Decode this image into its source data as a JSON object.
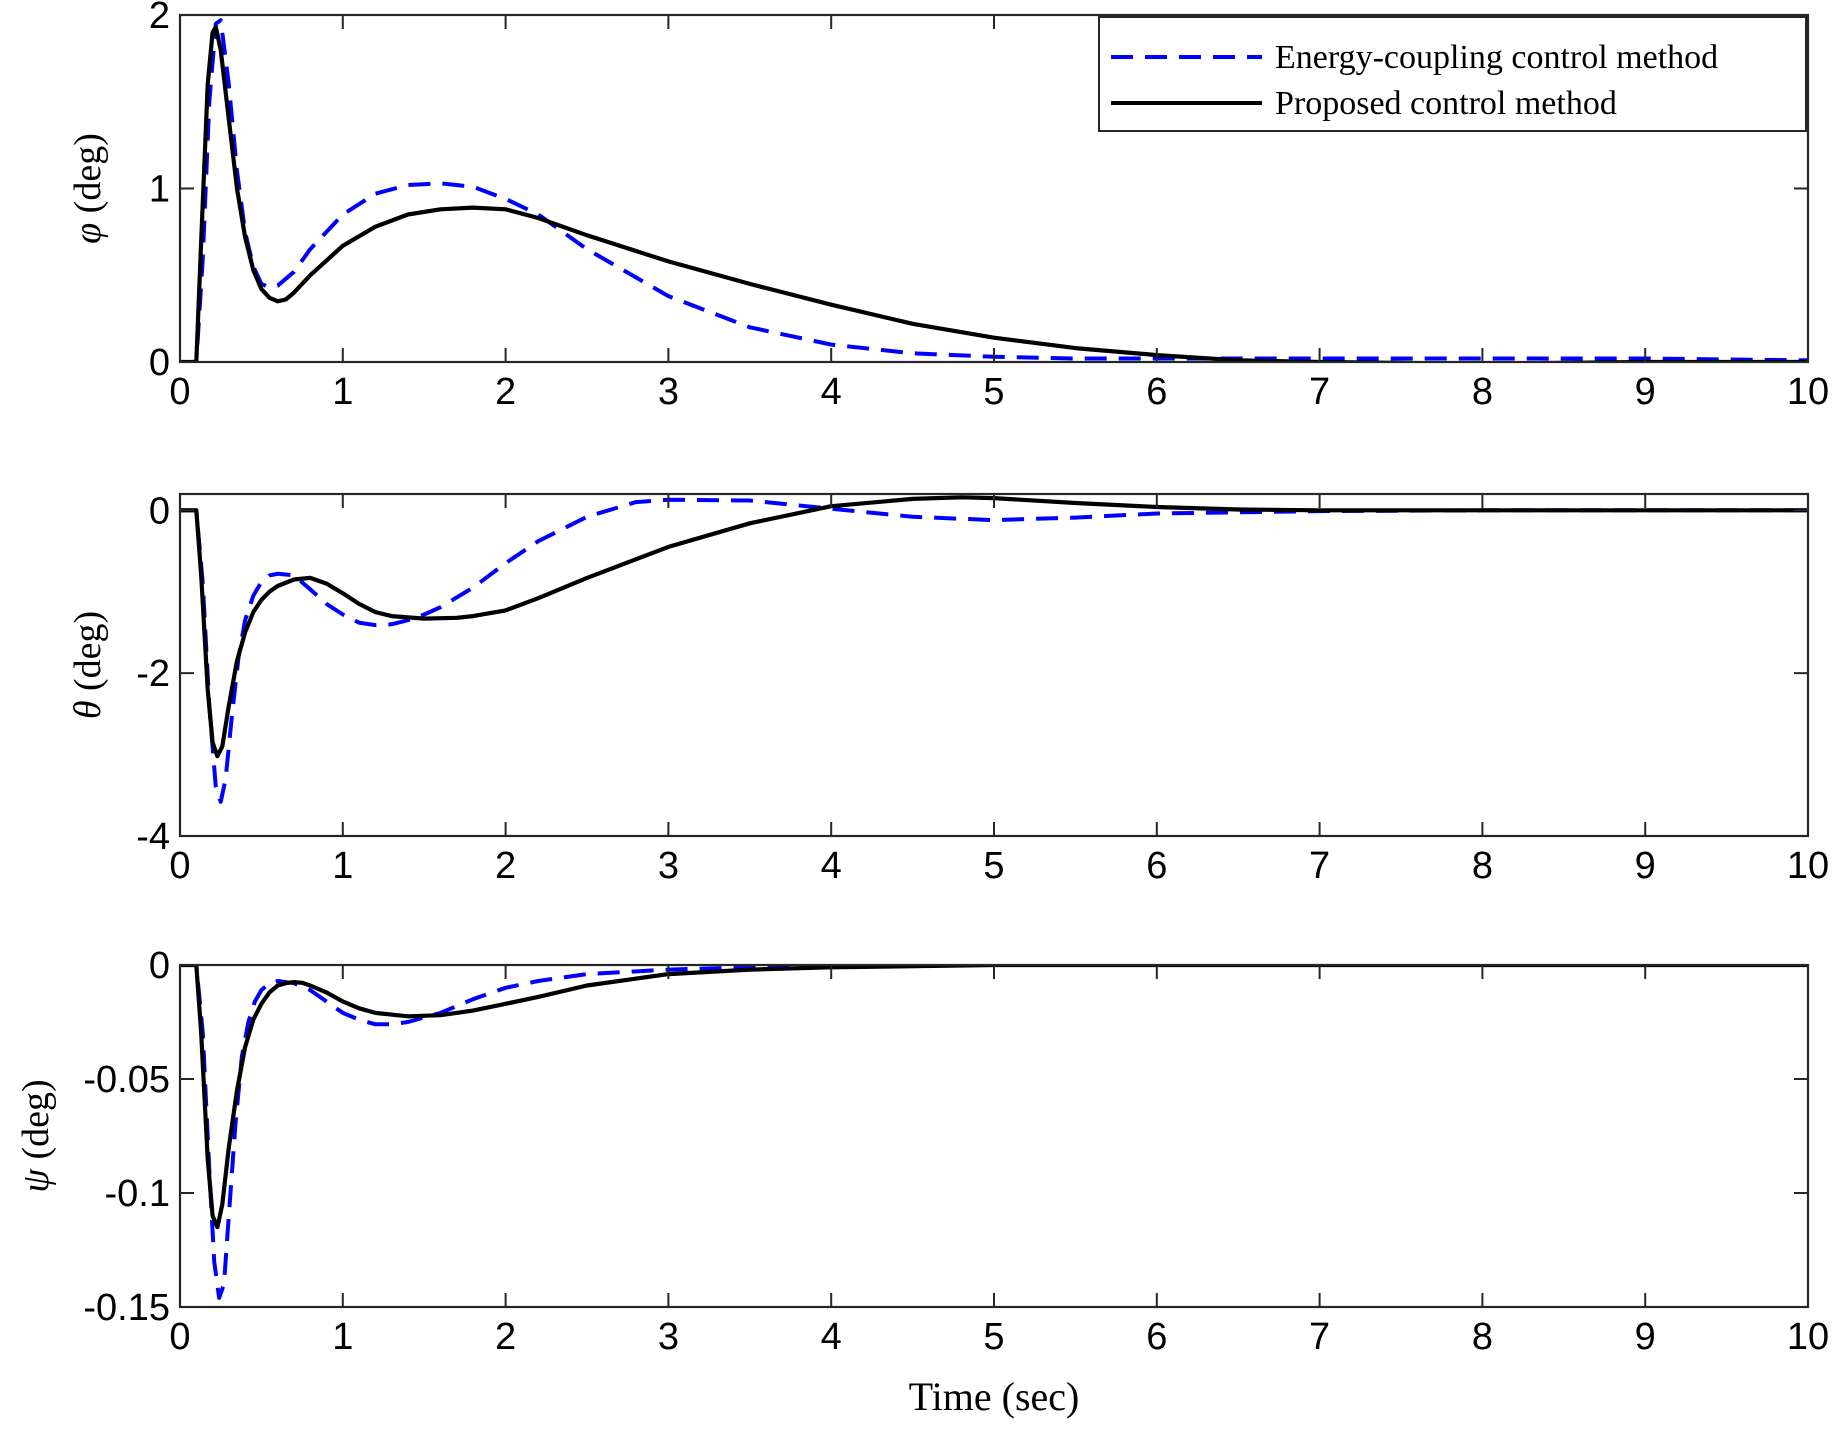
{
  "chart_data": [
    {
      "type": "line",
      "symbol": "φ",
      "unit": " (deg)",
      "xlim": [
        0,
        10
      ],
      "ylim": [
        0,
        2
      ],
      "xticks": [
        0,
        1,
        2,
        3,
        4,
        5,
        6,
        7,
        8,
        9,
        10
      ],
      "yticks": [
        0,
        1,
        2
      ],
      "ytick_labels": [
        "0",
        "1",
        "2"
      ],
      "legend": {
        "location": "top-right",
        "entries": [
          "Energy-coupling control method",
          "Proposed control method"
        ]
      },
      "series": [
        {
          "name": "Energy-coupling control method",
          "style": "dashed",
          "color": "#0000ff",
          "x": [
            0,
            0.1,
            0.14,
            0.18,
            0.22,
            0.25,
            0.3,
            0.35,
            0.4,
            0.45,
            0.5,
            0.55,
            0.6,
            0.7,
            0.8,
            1.0,
            1.2,
            1.4,
            1.6,
            1.8,
            2.0,
            2.2,
            2.5,
            3.0,
            3.5,
            4.0,
            4.5,
            5.0,
            5.5,
            6.0,
            7.0,
            8.0,
            9.0,
            10.0
          ],
          "y": [
            0,
            0,
            0.6,
            1.5,
            1.95,
            1.97,
            1.6,
            1.1,
            0.75,
            0.55,
            0.45,
            0.43,
            0.44,
            0.52,
            0.65,
            0.85,
            0.97,
            1.02,
            1.03,
            1.01,
            0.94,
            0.85,
            0.65,
            0.38,
            0.2,
            0.1,
            0.05,
            0.03,
            0.02,
            0.02,
            0.02,
            0.02,
            0.02,
            0.01
          ]
        },
        {
          "name": "Proposed control method",
          "style": "solid",
          "color": "#000000",
          "x": [
            0,
            0.1,
            0.13,
            0.17,
            0.2,
            0.22,
            0.25,
            0.3,
            0.35,
            0.4,
            0.45,
            0.5,
            0.55,
            0.6,
            0.65,
            0.7,
            0.8,
            1.0,
            1.2,
            1.4,
            1.6,
            1.8,
            2.0,
            2.2,
            2.5,
            3.0,
            3.5,
            4.0,
            4.5,
            5.0,
            5.5,
            6.0,
            6.5,
            7.0,
            8.0,
            9.0,
            10.0
          ],
          "y": [
            0,
            0,
            0.7,
            1.6,
            1.9,
            1.93,
            1.8,
            1.4,
            1.0,
            0.72,
            0.53,
            0.42,
            0.37,
            0.35,
            0.36,
            0.4,
            0.5,
            0.67,
            0.78,
            0.85,
            0.88,
            0.89,
            0.88,
            0.83,
            0.73,
            0.58,
            0.45,
            0.33,
            0.22,
            0.14,
            0.08,
            0.04,
            0.01,
            0.0,
            -0.01,
            0.0,
            0.0
          ]
        }
      ]
    },
    {
      "type": "line",
      "symbol": "θ",
      "unit": " (deg)",
      "xlim": [
        0,
        10
      ],
      "ylim": [
        -4,
        0.2
      ],
      "xticks": [
        0,
        1,
        2,
        3,
        4,
        5,
        6,
        7,
        8,
        9,
        10
      ],
      "yticks": [
        -4,
        -2,
        0
      ],
      "ytick_labels": [
        "-4",
        "-2",
        "0"
      ],
      "series": [
        {
          "name": "Energy-coupling control method",
          "style": "dashed",
          "color": "#0000ff",
          "x": [
            0,
            0.1,
            0.14,
            0.18,
            0.22,
            0.25,
            0.28,
            0.32,
            0.36,
            0.4,
            0.45,
            0.5,
            0.55,
            0.6,
            0.7,
            0.8,
            0.9,
            1.0,
            1.1,
            1.2,
            1.3,
            1.4,
            1.5,
            1.6,
            1.8,
            2.0,
            2.2,
            2.5,
            2.8,
            3.0,
            3.5,
            4.0,
            4.5,
            5.0,
            5.5,
            6.0,
            7.0,
            8.0,
            9.0,
            10.0
          ],
          "y": [
            0,
            0,
            -0.9,
            -2.4,
            -3.4,
            -3.58,
            -3.3,
            -2.5,
            -1.8,
            -1.35,
            -1.05,
            -0.88,
            -0.8,
            -0.78,
            -0.8,
            -0.97,
            -1.15,
            -1.28,
            -1.38,
            -1.41,
            -1.4,
            -1.35,
            -1.28,
            -1.19,
            -0.95,
            -0.65,
            -0.38,
            -0.08,
            0.1,
            0.13,
            0.12,
            0.02,
            -0.08,
            -0.12,
            -0.09,
            -0.04,
            -0.01,
            0.0,
            0.0,
            0.0
          ]
        },
        {
          "name": "Proposed control method",
          "style": "solid",
          "color": "#000000",
          "x": [
            0,
            0.1,
            0.13,
            0.17,
            0.2,
            0.23,
            0.26,
            0.3,
            0.35,
            0.4,
            0.45,
            0.5,
            0.55,
            0.6,
            0.7,
            0.8,
            0.9,
            1.0,
            1.1,
            1.2,
            1.3,
            1.5,
            1.7,
            1.8,
            2.0,
            2.2,
            2.5,
            3.0,
            3.5,
            4.0,
            4.5,
            4.8,
            5.0,
            5.5,
            6.0,
            6.5,
            7.0,
            8.0,
            9.0,
            10.0
          ],
          "y": [
            0,
            0,
            -0.8,
            -2.2,
            -2.85,
            -3.02,
            -2.9,
            -2.4,
            -1.85,
            -1.5,
            -1.25,
            -1.1,
            -1.0,
            -0.93,
            -0.85,
            -0.83,
            -0.9,
            -1.02,
            -1.15,
            -1.25,
            -1.3,
            -1.33,
            -1.32,
            -1.3,
            -1.23,
            -1.08,
            -0.83,
            -0.45,
            -0.16,
            0.05,
            0.14,
            0.16,
            0.15,
            0.09,
            0.04,
            0.01,
            0.0,
            0.0,
            0.0,
            0.0
          ]
        }
      ]
    },
    {
      "type": "line",
      "symbol": "ψ",
      "unit": " (deg)",
      "xlim": [
        0,
        10
      ],
      "ylim": [
        -0.15,
        0
      ],
      "xticks": [
        0,
        1,
        2,
        3,
        4,
        5,
        6,
        7,
        8,
        9,
        10
      ],
      "yticks": [
        -0.15,
        -0.1,
        -0.05,
        0
      ],
      "ytick_labels": [
        "-0.15",
        "-0.1",
        "-0.05",
        "0"
      ],
      "xlabel": "Time (sec)",
      "series": [
        {
          "name": "Energy-coupling control method",
          "style": "dashed",
          "color": "#0000ff",
          "x": [
            0,
            0.1,
            0.14,
            0.18,
            0.21,
            0.24,
            0.27,
            0.3,
            0.34,
            0.38,
            0.42,
            0.46,
            0.5,
            0.55,
            0.6,
            0.7,
            0.8,
            0.9,
            1.0,
            1.1,
            1.2,
            1.3,
            1.4,
            1.5,
            1.6,
            1.8,
            2.0,
            2.2,
            2.5,
            3.0,
            3.5,
            4.0,
            5.0,
            6.0,
            7.0,
            8.0,
            9.0,
            10.0
          ],
          "y": [
            0,
            0,
            -0.03,
            -0.09,
            -0.13,
            -0.146,
            -0.14,
            -0.11,
            -0.07,
            -0.04,
            -0.025,
            -0.016,
            -0.011,
            -0.008,
            -0.007,
            -0.008,
            -0.011,
            -0.016,
            -0.021,
            -0.024,
            -0.026,
            -0.026,
            -0.025,
            -0.023,
            -0.021,
            -0.015,
            -0.01,
            -0.007,
            -0.004,
            -0.002,
            -0.001,
            0.0,
            0.0,
            0.0,
            0.0,
            0.0,
            0.0,
            0.0
          ]
        },
        {
          "name": "Proposed control method",
          "style": "solid",
          "color": "#000000",
          "x": [
            0,
            0.1,
            0.13,
            0.17,
            0.2,
            0.23,
            0.26,
            0.3,
            0.35,
            0.4,
            0.45,
            0.5,
            0.55,
            0.6,
            0.65,
            0.7,
            0.75,
            0.8,
            0.9,
            1.0,
            1.1,
            1.2,
            1.4,
            1.6,
            1.8,
            2.0,
            2.2,
            2.5,
            3.0,
            3.5,
            4.0,
            5.0,
            6.0,
            7.0,
            8.0,
            9.0,
            10.0
          ],
          "y": [
            0,
            0,
            -0.03,
            -0.085,
            -0.11,
            -0.115,
            -0.105,
            -0.08,
            -0.055,
            -0.036,
            -0.024,
            -0.017,
            -0.012,
            -0.009,
            -0.008,
            -0.0075,
            -0.0078,
            -0.009,
            -0.012,
            -0.016,
            -0.019,
            -0.021,
            -0.0225,
            -0.022,
            -0.02,
            -0.017,
            -0.014,
            -0.009,
            -0.004,
            -0.002,
            -0.001,
            0.0,
            0.0,
            0.0,
            0.0,
            0.0,
            0.0
          ]
        }
      ]
    }
  ]
}
